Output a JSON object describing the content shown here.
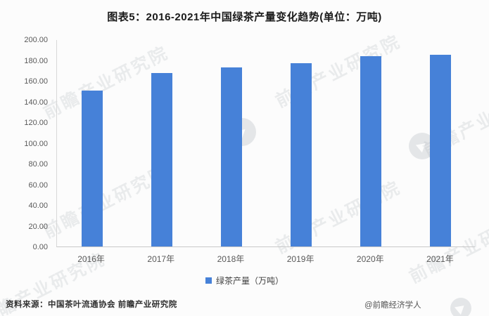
{
  "title": "图表5：2016-2021年中国绿茶产量变化趋势(单位：万吨)",
  "chart_data": {
    "type": "bar",
    "title": "图表5：2016-2021年中国绿茶产量变化趋势(单位：万吨)",
    "categories": [
      "2016年",
      "2017年",
      "2018年",
      "2019年",
      "2020年",
      "2021年"
    ],
    "series": [
      {
        "name": "绿茶产量（万吨）",
        "values": [
          151.0,
          168.0,
          173.5,
          177.5,
          184.5,
          185.5
        ]
      }
    ],
    "xlabel": "",
    "ylabel": "",
    "ylim": [
      0,
      200
    ],
    "ytick_step": 20,
    "yticks": [
      "200.00",
      "180.00",
      "160.00",
      "140.00",
      "120.00",
      "100.00",
      "80.00",
      "60.00",
      "40.00",
      "20.00",
      "0.00"
    ],
    "grid": false,
    "legend_position": "bottom",
    "bar_color": "#4681d8"
  },
  "legend": {
    "label": "绿茶产量（万吨）"
  },
  "footer": {
    "source": "资料来源：中国茶叶流通协会 前瞻产业研究院",
    "credit": "@前瞻经济学人"
  },
  "watermark": {
    "text": "前瞻产业研究院",
    "logo": "qianzhan-logo"
  }
}
